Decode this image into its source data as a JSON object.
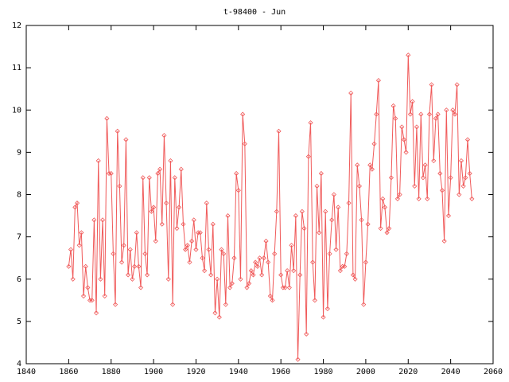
{
  "chart_data": {
    "type": "line",
    "title": "t-98400 - Jun",
    "x": [
      1860,
      1861,
      1862,
      1863,
      1864,
      1865,
      1866,
      1867,
      1868,
      1869,
      1870,
      1871,
      1872,
      1873,
      1874,
      1875,
      1876,
      1877,
      1878,
      1879,
      1880,
      1881,
      1882,
      1883,
      1884,
      1885,
      1886,
      1887,
      1888,
      1889,
      1890,
      1891,
      1892,
      1893,
      1894,
      1895,
      1896,
      1897,
      1898,
      1899,
      1900,
      1901,
      1902,
      1903,
      1904,
      1905,
      1906,
      1907,
      1908,
      1909,
      1910,
      1911,
      1912,
      1913,
      1914,
      1915,
      1916,
      1917,
      1918,
      1919,
      1920,
      1921,
      1922,
      1923,
      1924,
      1925,
      1926,
      1927,
      1928,
      1929,
      1930,
      1931,
      1932,
      1933,
      1934,
      1935,
      1936,
      1937,
      1938,
      1939,
      1940,
      1941,
      1942,
      1943,
      1944,
      1945,
      1946,
      1947,
      1948,
      1949,
      1950,
      1951,
      1952,
      1953,
      1954,
      1955,
      1956,
      1957,
      1958,
      1959,
      1960,
      1961,
      1962,
      1963,
      1964,
      1965,
      1966,
      1967,
      1968,
      1969,
      1970,
      1971,
      1972,
      1973,
      1974,
      1975,
      1976,
      1977,
      1978,
      1979,
      1980,
      1981,
      1982,
      1983,
      1984,
      1985,
      1986,
      1987,
      1988,
      1989,
      1990,
      1991,
      1992,
      1993,
      1994,
      1995,
      1996,
      1997,
      1998,
      1999,
      2000,
      2001,
      2002,
      2003,
      2004,
      2005,
      2006,
      2007,
      2008,
      2009,
      2010,
      2011,
      2012,
      2013,
      2014,
      2015,
      2016,
      2017,
      2018,
      2019,
      2020,
      2021,
      2022,
      2023,
      2024,
      2025,
      2026,
      2027,
      2028,
      2029,
      2030,
      2031,
      2032,
      2033,
      2034,
      2035,
      2036,
      2037,
      2038,
      2039,
      2040,
      2041,
      2042,
      2043,
      2044,
      2045,
      2046,
      2047,
      2048,
      2049,
      2050
    ],
    "values": [
      6.3,
      6.7,
      6.0,
      7.7,
      7.8,
      6.8,
      7.1,
      5.6,
      6.3,
      5.8,
      5.5,
      5.5,
      7.4,
      5.2,
      8.8,
      6.0,
      7.4,
      5.6,
      9.8,
      8.5,
      8.5,
      6.6,
      5.4,
      9.5,
      8.2,
      6.4,
      6.8,
      9.3,
      6.1,
      6.7,
      6.0,
      6.3,
      7.1,
      6.3,
      5.8,
      8.4,
      6.6,
      6.1,
      8.4,
      7.6,
      7.7,
      6.9,
      8.5,
      8.6,
      7.3,
      9.4,
      7.8,
      6.0,
      8.8,
      5.4,
      8.4,
      7.2,
      7.7,
      8.6,
      7.3,
      6.7,
      6.8,
      6.4,
      6.9,
      7.4,
      6.7,
      7.1,
      7.1,
      6.5,
      6.2,
      7.8,
      6.7,
      6.1,
      7.3,
      5.2,
      6.0,
      5.1,
      6.7,
      6.6,
      5.4,
      7.5,
      5.8,
      5.9,
      6.5,
      8.5,
      8.1,
      6.0,
      9.9,
      9.2,
      5.8,
      5.9,
      6.2,
      6.1,
      6.4,
      6.3,
      6.5,
      6.1,
      6.5,
      6.9,
      6.4,
      5.6,
      5.5,
      6.6,
      7.6,
      9.5,
      6.1,
      5.8,
      5.8,
      6.2,
      5.8,
      6.8,
      6.2,
      7.5,
      4.1,
      6.1,
      7.6,
      7.2,
      4.7,
      8.9,
      9.7,
      6.4,
      5.5,
      8.2,
      7.1,
      8.5,
      5.1,
      7.6,
      5.3,
      6.6,
      7.4,
      8.0,
      6.7,
      7.7,
      6.2,
      6.3,
      6.3,
      6.6,
      7.8,
      10.4,
      6.1,
      6.0,
      8.7,
      8.2,
      7.4,
      5.4,
      6.4,
      7.3,
      8.7,
      8.6,
      9.2,
      9.9,
      10.7,
      7.2,
      7.9,
      7.7,
      7.1,
      7.2,
      8.4,
      10.1,
      9.8,
      7.9,
      8.0,
      9.6,
      9.3,
      9.0,
      11.3,
      9.9,
      10.2,
      8.2,
      9.6,
      7.9,
      9.9,
      8.4,
      8.7,
      7.9,
      9.9,
      10.6,
      8.8,
      9.8,
      9.9,
      8.5,
      8.1,
      6.9,
      10.0,
      7.5,
      8.4,
      10.0,
      9.9,
      10.6,
      8.0,
      8.8,
      8.2,
      8.4,
      9.3,
      8.5,
      7.9
    ],
    "color": "#f05a5a",
    "xlim": [
      1840,
      2060
    ],
    "xticks": [
      1840,
      1860,
      1880,
      1900,
      1920,
      1940,
      1960,
      1980,
      2000,
      2020,
      2040,
      2060
    ],
    "ylim": [
      4,
      12
    ],
    "yticks": [
      4,
      5,
      6,
      7,
      8,
      9,
      10,
      11,
      12
    ]
  }
}
